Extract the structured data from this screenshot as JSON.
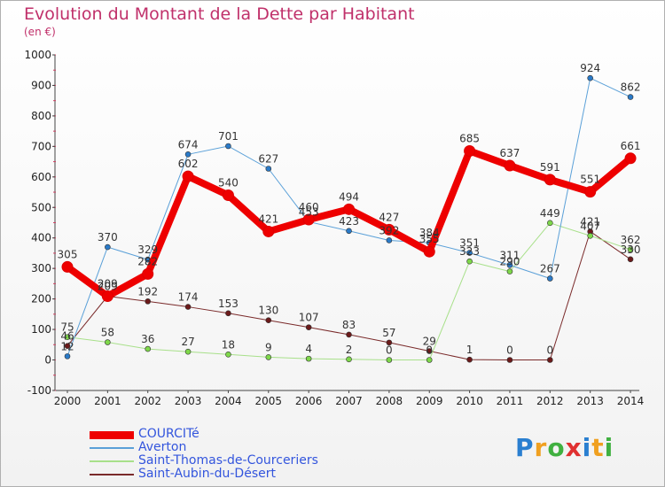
{
  "title": "Evolution du Montant de la Dette par Habitant",
  "unit": "(en €)",
  "logo": {
    "text": "Proxiti",
    "colors": [
      "#2a7fd0",
      "#f0a020",
      "#40b040",
      "#e03030",
      "#2a7fd0",
      "#f0a020",
      "#40b040"
    ]
  },
  "chart_data": {
    "type": "line",
    "title": "Evolution du Montant de la Dette par Habitant",
    "subtitle": "(en €)",
    "xlabel": "",
    "ylabel": "",
    "x": [
      "2000",
      "2001",
      "2002",
      "2003",
      "2004",
      "2005",
      "2006",
      "2007",
      "2008",
      "2009",
      "2010",
      "2011",
      "2012",
      "2013",
      "2014"
    ],
    "yticks": [
      "-100",
      "0",
      "100",
      "200",
      "300",
      "400",
      "500",
      "600",
      "700",
      "800",
      "900",
      "1000"
    ],
    "ylim": [
      -100,
      1000
    ],
    "grid": false,
    "legend": "bottom-left",
    "series": [
      {
        "name": "Saint-Aubin-du-Désert",
        "color": "#7a2a2a",
        "fill": "#6b1a1a",
        "width": 1,
        "values": [
          46,
          209,
          192,
          174,
          153,
          130,
          107,
          83,
          57,
          29,
          1,
          0,
          0,
          421,
          330
        ],
        "labels": [
          "46",
          "209",
          "192",
          "174",
          "153",
          "130",
          "107",
          "83",
          "57",
          "29",
          "1",
          "0",
          "0",
          "421",
          "330"
        ]
      },
      {
        "name": "Saint-Thomas-de-Courceriers",
        "color": "#a8e08a",
        "fill": "#7ed84a",
        "width": 1,
        "values": [
          75,
          58,
          36,
          27,
          18,
          9,
          4,
          2,
          0,
          0,
          323,
          290,
          449,
          407,
          362
        ],
        "labels": [
          "75",
          "58",
          "36",
          "27",
          "18",
          "9",
          "4",
          "2",
          "0",
          "0",
          "323",
          "290",
          "449",
          "407",
          "362"
        ]
      },
      {
        "name": "Averton",
        "color": "#5aa0d8",
        "fill": "#2a7ac8",
        "width": 1,
        "values": [
          12,
          370,
          329,
          674,
          701,
          627,
          453,
          423,
          392,
          384,
          351,
          311,
          267,
          924,
          862
        ],
        "labels": [
          "12",
          "370",
          "329",
          "674",
          "701",
          "627",
          "453",
          "423",
          "392",
          "384",
          "351",
          "311",
          "267",
          "924",
          "862"
        ]
      },
      {
        "name": "COURCITé",
        "color": "#ee0000",
        "fill": "#ee0000",
        "width": 8,
        "values": [
          305,
          209,
          282,
          602,
          540,
          421,
          460,
          494,
          427,
          355,
          685,
          637,
          591,
          551,
          661
        ],
        "labels": [
          "305",
          "209",
          "282",
          "602",
          "540",
          "421",
          "460",
          "494",
          "427",
          "355",
          "685",
          "637",
          "591",
          "551",
          "661"
        ]
      }
    ],
    "legend_entries": [
      "COURCITé",
      "Averton",
      "Saint-Thomas-de-Courceriers",
      "Saint-Aubin-du-Désert"
    ],
    "legend_colors": [
      "#ee0000",
      "#5aa0d8",
      "#a8e08a",
      "#7a2a2a"
    ]
  }
}
